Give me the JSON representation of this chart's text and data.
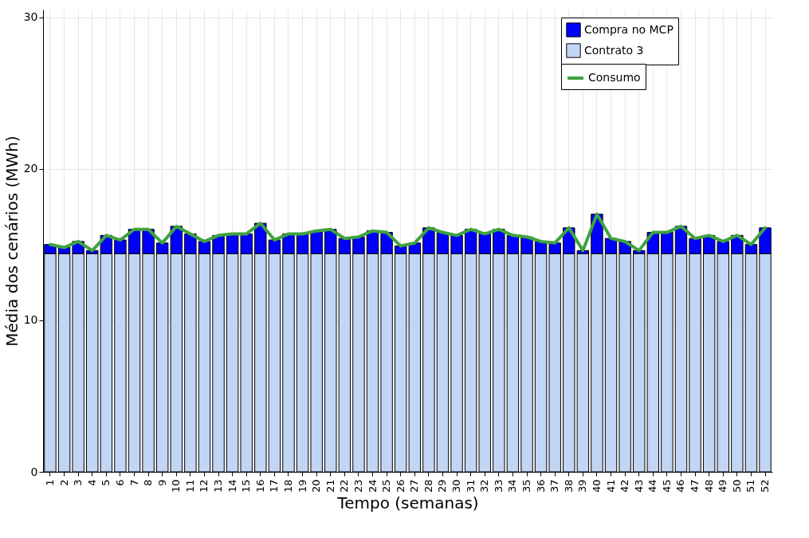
{
  "chart_data": {
    "type": "bar",
    "xlabel": "Tempo (semanas)",
    "ylabel": "Média dos cenários (MWh)",
    "stacked": true,
    "grid": true,
    "legend": "top right",
    "ylim": [
      0,
      30.5
    ],
    "yticks": [
      0,
      10,
      20,
      30
    ],
    "categories": [
      "1",
      "2",
      "3",
      "4",
      "5",
      "6",
      "7",
      "8",
      "9",
      "10",
      "11",
      "12",
      "13",
      "14",
      "15",
      "16",
      "17",
      "18",
      "19",
      "20",
      "21",
      "22",
      "23",
      "24",
      "25",
      "26",
      "27",
      "28",
      "29",
      "30",
      "31",
      "32",
      "33",
      "34",
      "35",
      "36",
      "37",
      "38",
      "39",
      "40",
      "41",
      "42",
      "43",
      "44",
      "45",
      "46",
      "47",
      "48",
      "49",
      "50",
      "51",
      "52"
    ],
    "series": [
      {
        "name": "Contrato 3",
        "color": "#c2d5f5",
        "values": [
          14.4,
          14.4,
          14.4,
          14.4,
          14.4,
          14.4,
          14.4,
          14.4,
          14.4,
          14.4,
          14.4,
          14.4,
          14.4,
          14.4,
          14.4,
          14.4,
          14.4,
          14.4,
          14.4,
          14.4,
          14.4,
          14.4,
          14.4,
          14.4,
          14.4,
          14.4,
          14.4,
          14.4,
          14.4,
          14.4,
          14.4,
          14.4,
          14.4,
          14.4,
          14.4,
          14.4,
          14.4,
          14.4,
          14.4,
          14.4,
          14.4,
          14.4,
          14.4,
          14.4,
          14.4,
          14.4,
          14.4,
          14.4,
          14.4,
          14.4,
          14.4,
          14.4
        ]
      },
      {
        "name": "Compra no MCP",
        "color": "#0000ff",
        "values": [
          0.6,
          0.4,
          0.8,
          0.2,
          1.2,
          0.9,
          1.6,
          1.6,
          0.7,
          1.8,
          1.3,
          0.8,
          1.2,
          1.3,
          1.3,
          2.0,
          0.9,
          1.3,
          1.3,
          1.5,
          1.6,
          1.0,
          1.1,
          1.5,
          1.4,
          0.5,
          0.7,
          1.7,
          1.4,
          1.2,
          1.6,
          1.3,
          1.6,
          1.2,
          1.1,
          0.8,
          0.7,
          1.7,
          0.2,
          2.6,
          1.0,
          0.8,
          0.2,
          1.4,
          1.4,
          1.8,
          1.0,
          1.2,
          0.8,
          1.2,
          0.6,
          1.7
        ]
      },
      {
        "name": "Consumo",
        "type": "line",
        "color": "#3fa33f",
        "values": [
          15.0,
          14.8,
          15.2,
          14.6,
          15.6,
          15.3,
          16.0,
          16.0,
          15.1,
          16.2,
          15.7,
          15.2,
          15.6,
          15.7,
          15.7,
          16.4,
          15.3,
          15.7,
          15.7,
          15.9,
          16.0,
          15.4,
          15.5,
          15.9,
          15.8,
          14.9,
          15.1,
          16.1,
          15.8,
          15.6,
          16.0,
          15.7,
          16.0,
          15.6,
          15.5,
          15.2,
          15.1,
          16.1,
          14.6,
          17.0,
          15.4,
          15.2,
          14.6,
          15.8,
          15.8,
          16.2,
          15.4,
          15.6,
          15.2,
          15.6,
          15.0,
          16.1
        ]
      }
    ]
  }
}
